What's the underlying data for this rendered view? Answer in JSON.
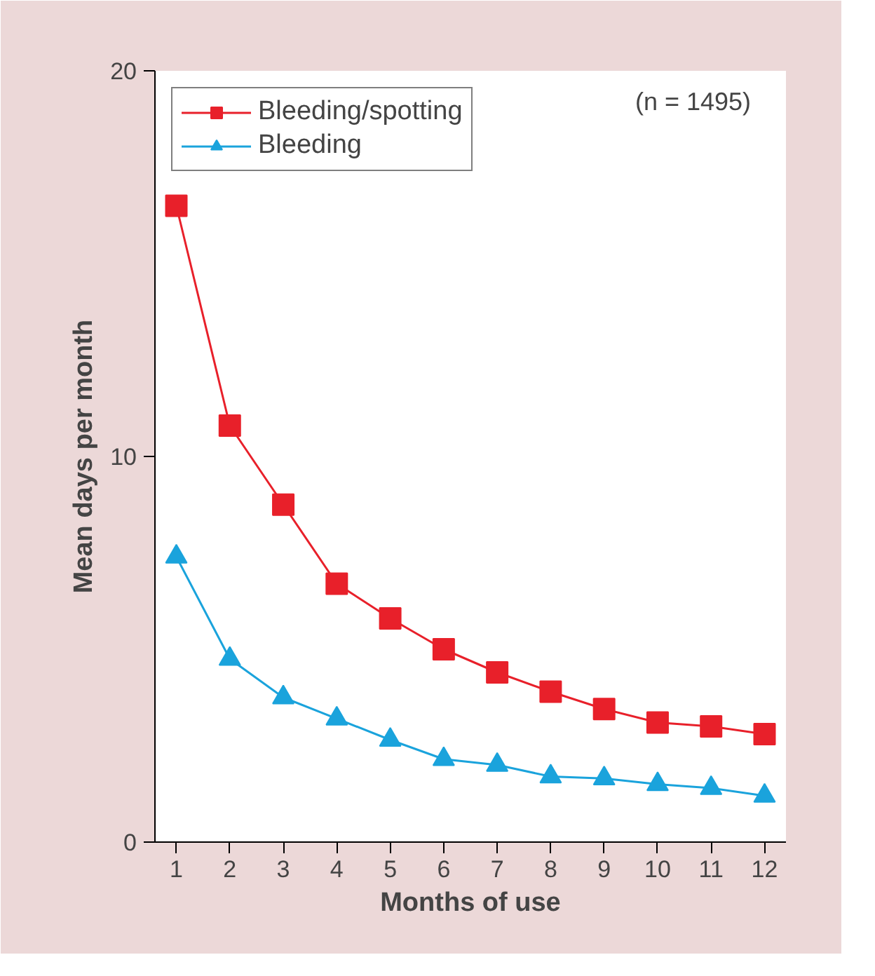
{
  "chart_data": {
    "type": "line",
    "xlabel": "Months of use",
    "ylabel": "Mean days per month",
    "x": [
      1,
      2,
      3,
      4,
      5,
      6,
      7,
      8,
      9,
      10,
      11,
      12
    ],
    "series": [
      {
        "name": "Bleeding/spotting",
        "color": "#e8202a",
        "marker": "square",
        "values": [
          16.5,
          10.8,
          8.75,
          6.7,
          5.8,
          5.0,
          4.4,
          3.9,
          3.45,
          3.1,
          3.0,
          2.8
        ]
      },
      {
        "name": "Bleeding",
        "color": "#1aa3dc",
        "marker": "triangle",
        "values": [
          7.4,
          4.75,
          3.75,
          3.2,
          2.65,
          2.15,
          2.0,
          1.7,
          1.65,
          1.5,
          1.4,
          1.2
        ]
      }
    ],
    "xlim": [
      0.6,
      12.4
    ],
    "xticks": [
      1,
      2,
      3,
      4,
      5,
      6,
      7,
      8,
      9,
      10,
      11,
      12
    ],
    "ylim": [
      0,
      20
    ],
    "yticks": [
      0,
      10,
      20
    ],
    "grid": false,
    "legend": "top left",
    "line_style": "solid",
    "annotations": [
      "(n = 1495)"
    ]
  }
}
